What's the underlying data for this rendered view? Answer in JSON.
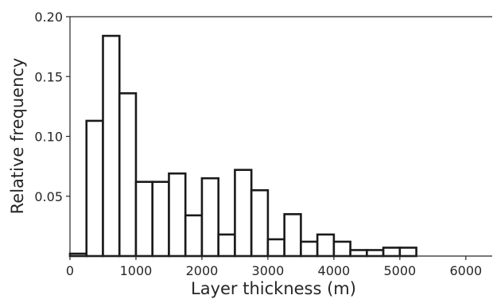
{
  "chart_data": {
    "type": "bar",
    "subtype": "histogram",
    "title": "",
    "xlabel": "Layer thickness (m)",
    "ylabel": "Relative frequency",
    "xlim": [
      0,
      6400
    ],
    "ylim": [
      0,
      0.2
    ],
    "bin_width": 250,
    "bin_start": 0,
    "values": [
      0.002,
      0.113,
      0.184,
      0.136,
      0.062,
      0.062,
      0.069,
      0.034,
      0.065,
      0.018,
      0.072,
      0.055,
      0.014,
      0.035,
      0.012,
      0.018,
      0.012,
      0.005,
      0.005,
      0.007,
      0.007
    ],
    "x_ticks": [
      0,
      1000,
      2000,
      3000,
      4000,
      5000,
      6000
    ],
    "x_tick_labels": [
      "0",
      "1000",
      "2000",
      "3000",
      "4000",
      "5000",
      "6000"
    ],
    "y_ticks": [
      0.05,
      0.1,
      0.15,
      0.2
    ],
    "y_tick_labels": [
      "0.05",
      "0.10",
      "0.15",
      "0.20"
    ],
    "grid": false,
    "legend": "none",
    "bar_fill": "#ffffff",
    "bar_edge": "#1a1a1a"
  }
}
